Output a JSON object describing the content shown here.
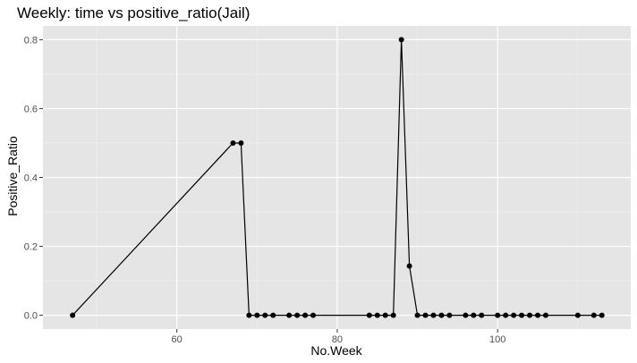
{
  "chart_data": {
    "type": "line",
    "title": "Weekly: time vs positive_ratio(Jail)",
    "xlabel": "No.Week",
    "ylabel": "Positive_Ratio",
    "xlim": [
      43.3,
      116.6
    ],
    "ylim": [
      -0.04,
      0.84
    ],
    "x_ticks": [
      60,
      80,
      100
    ],
    "x_tick_labels": [
      "60",
      "80",
      "100"
    ],
    "x_minor_ticks": [
      50,
      70,
      90,
      110
    ],
    "y_ticks": [
      0.0,
      0.2,
      0.4,
      0.6,
      0.8
    ],
    "y_tick_labels": [
      "0.0",
      "0.2",
      "0.4",
      "0.6",
      "0.8"
    ],
    "y_minor_ticks": [
      0.1,
      0.3,
      0.5,
      0.7
    ],
    "grid": true,
    "markers": true,
    "series": [
      {
        "x": [
          47,
          67,
          68,
          69,
          70,
          71,
          72,
          74,
          75,
          76,
          77,
          84,
          85,
          86,
          87,
          88,
          89,
          90,
          91,
          92,
          93,
          94,
          96,
          97,
          98,
          100,
          101,
          102,
          103,
          104,
          105,
          106,
          110,
          112,
          113
        ],
        "y": [
          0,
          0.5,
          0.5,
          0,
          0,
          0,
          0,
          0,
          0,
          0,
          0,
          0,
          0,
          0,
          0,
          0.8,
          0.143,
          0,
          0,
          0,
          0,
          0,
          0,
          0,
          0,
          0,
          0,
          0,
          0,
          0,
          0,
          0,
          0,
          0,
          0
        ]
      }
    ],
    "colors": {
      "panel_background": "#e5e5e5",
      "grid_major": "#ffffff",
      "grid_minor": "#f2f2f2",
      "line": "#000000",
      "point": "#000000",
      "tick_mark": "#333333"
    }
  }
}
